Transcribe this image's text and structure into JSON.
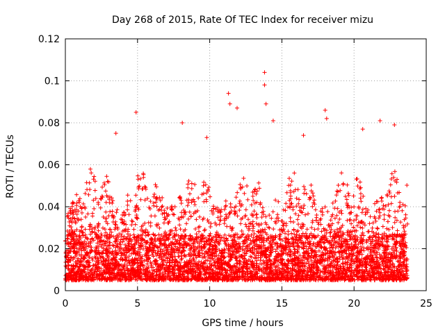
{
  "chart_data": {
    "type": "scatter",
    "title": "Day 268 of 2015, Rate Of TEC Index for receiver mizu",
    "xlabel": "GPS time / hours",
    "ylabel": "ROTI / TECUs",
    "xlim": [
      0,
      25
    ],
    "ylim": [
      0,
      0.12
    ],
    "x_ticks": [
      "0",
      "5",
      "10",
      "15",
      "20",
      "25"
    ],
    "x_tick_values": [
      0,
      5,
      10,
      15,
      20,
      25
    ],
    "y_ticks": [
      "0",
      "0.02",
      "0.04",
      "0.06",
      "0.08",
      "0.1",
      "0.12"
    ],
    "y_tick_values": [
      0,
      0.02,
      0.04,
      0.06,
      0.08,
      0.1,
      0.12
    ],
    "grid": true,
    "marker": "+",
    "series_color": "#ff0000",
    "x_range_of_points": [
      0,
      23.7
    ],
    "typical_band": [
      0.005,
      0.06
    ],
    "notable_points": [
      {
        "x": 4.9,
        "y": 0.085
      },
      {
        "x": 8.1,
        "y": 0.08
      },
      {
        "x": 11.3,
        "y": 0.094
      },
      {
        "x": 11.4,
        "y": 0.089
      },
      {
        "x": 11.9,
        "y": 0.087
      },
      {
        "x": 13.8,
        "y": 0.104
      },
      {
        "x": 13.8,
        "y": 0.098
      },
      {
        "x": 13.9,
        "y": 0.089
      },
      {
        "x": 14.4,
        "y": 0.081
      },
      {
        "x": 18.0,
        "y": 0.086
      },
      {
        "x": 18.1,
        "y": 0.082
      },
      {
        "x": 21.8,
        "y": 0.081
      },
      {
        "x": 22.8,
        "y": 0.079
      },
      {
        "x": 3.5,
        "y": 0.075
      },
      {
        "x": 9.8,
        "y": 0.073
      },
      {
        "x": 16.5,
        "y": 0.074
      },
      {
        "x": 20.6,
        "y": 0.077
      }
    ]
  }
}
